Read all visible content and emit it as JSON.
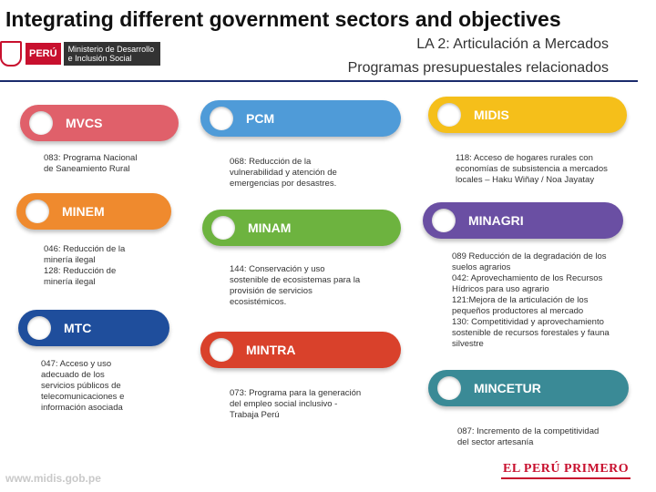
{
  "slide_title": "Integrating different government sectors and objectives",
  "header": {
    "logo": {
      "country": "PERÚ",
      "line1": "Ministerio de Desarrollo",
      "line2": "e Inclusión Social"
    },
    "title": "LA 2: Articulación a Mercados",
    "subtitle": "Programas presupuestales relacionados"
  },
  "sectors": [
    {
      "name": "MVCS",
      "color": "#e0606a",
      "desc": [
        "083: Programa Nacional",
        "de Saneamiento Rural"
      ]
    },
    {
      "name": "PCM",
      "color": "#4f9bd8",
      "desc": [
        "068: Reducción de la",
        "vulnerabilidad y atención de",
        "emergencias por desastres."
      ]
    },
    {
      "name": "MIDIS",
      "color": "#f5bf1a",
      "desc": [
        "118: Acceso de hogares rurales con",
        "economías de subsistencia a mercados",
        "locales – Haku Wiñay / Noa Jayatay"
      ]
    },
    {
      "name": "MINEM",
      "color": "#ef8a2e",
      "desc": [
        "046: Reducción de la",
        "minería ilegal",
        "128: Reducción de",
        "minería ilegal"
      ]
    },
    {
      "name": "MINAM",
      "color": "#6db33f",
      "desc": [
        "144: Conservación y uso",
        "sostenible de ecosistemas para la",
        "provisión de servicios",
        "ecosistémicos."
      ]
    },
    {
      "name": "MINAGRI",
      "color": "#6a4fa3",
      "desc": [
        "089 Reducción de la degradación de los",
        "suelos agrarios",
        "042: Aprovechamiento de los Recursos",
        "Hídricos para uso agrario",
        "121:Mejora de la articulación de los",
        "pequeños productores al mercado",
        "130: Competitividad y aprovechamiento",
        "sostenible de recursos forestales y fauna",
        "silvestre"
      ]
    },
    {
      "name": "MTC",
      "color": "#1f4e9c",
      "desc": [
        "047: Acceso y uso",
        "adecuado de los",
        "servicios públicos de",
        "telecomunicaciones e",
        "información asociada"
      ]
    },
    {
      "name": "MINTRA",
      "color": "#d9412b",
      "desc": [
        "073: Programa para la generación",
        "del empleo social inclusivo -",
        "Trabaja Perú"
      ]
    },
    {
      "name": "MINCETUR",
      "color": "#3a8a96",
      "desc": [
        "087: Incremento de la competitividad",
        "del sector artesanía"
      ]
    }
  ],
  "footer": {
    "url": "www.midis.gob.pe",
    "brand": "EL PERÚ PRIMERO"
  }
}
